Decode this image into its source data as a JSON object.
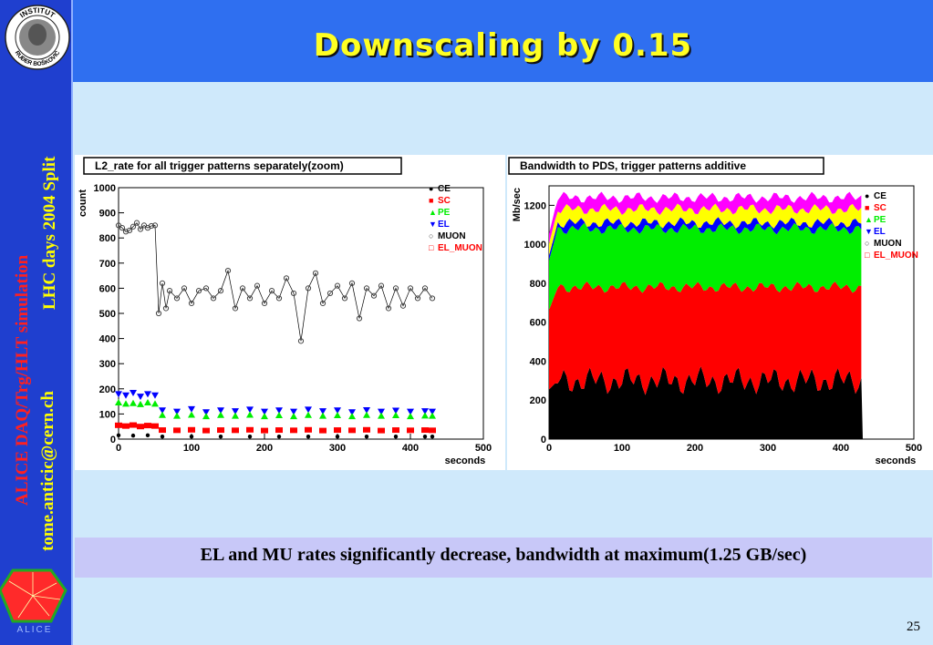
{
  "slide": {
    "title": "Downscaling by 0.15",
    "caption": "EL and MU rates  significantly decrease, bandwidth at maximum(1.25 GB/sec)",
    "page_number": "25"
  },
  "sidebar": {
    "logo_text_top": "INSTITUT",
    "logo_text_bottom": "RUĐER BOŠKOVIĆ",
    "event_text": "LHC days 2004 Split",
    "project_text": "ALICE DAQ/Trg/HLT simulation",
    "author_text": "tome.anticic@cern.ch",
    "alice_logo_text": "ALICE"
  },
  "colors": {
    "CE": "#000000",
    "SC": "#ff0000",
    "PE": "#00ee00",
    "EL": "#0000ff",
    "MUON": "#444444",
    "EL_MUON": "#ff0000",
    "MUON_band": "#ffff00",
    "EL_MUON_band": "#ff00ff",
    "sidebar": "#1f3fcf",
    "titlebar": "#2f6ff0",
    "title_text": "#ffff22"
  },
  "chart_data": [
    {
      "type": "scatter",
      "title": "L2_rate for all trigger patterns separately(zoom)",
      "xlabel": "seconds",
      "ylabel": "count",
      "xlim": [
        0,
        500
      ],
      "ylim": [
        0,
        1000
      ],
      "xticks": [
        0,
        100,
        200,
        300,
        400,
        500
      ],
      "yticks": [
        0,
        100,
        200,
        300,
        400,
        500,
        600,
        700,
        800,
        900,
        1000
      ],
      "legend_position": "top-right",
      "legend": [
        "CE",
        "SC",
        "PE",
        "EL",
        "MUON",
        "EL_MUON"
      ],
      "series": [
        {
          "name": "MUON",
          "marker": "open-circle",
          "color": "#444444",
          "points": [
            [
              0,
              850
            ],
            [
              5,
              840
            ],
            [
              10,
              825
            ],
            [
              15,
              830
            ],
            [
              20,
              845
            ],
            [
              25,
              860
            ],
            [
              30,
              835
            ],
            [
              35,
              850
            ],
            [
              40,
              840
            ],
            [
              45,
              848
            ],
            [
              50,
              850
            ],
            [
              55,
              500
            ],
            [
              60,
              620
            ],
            [
              65,
              520
            ],
            [
              70,
              590
            ],
            [
              80,
              560
            ],
            [
              90,
              600
            ],
            [
              100,
              540
            ],
            [
              110,
              590
            ],
            [
              120,
              600
            ],
            [
              130,
              560
            ],
            [
              140,
              590
            ],
            [
              150,
              670
            ],
            [
              160,
              520
            ],
            [
              170,
              600
            ],
            [
              180,
              560
            ],
            [
              190,
              610
            ],
            [
              200,
              540
            ],
            [
              210,
              590
            ],
            [
              220,
              560
            ],
            [
              230,
              640
            ],
            [
              240,
              580
            ],
            [
              250,
              390
            ],
            [
              260,
              600
            ],
            [
              270,
              660
            ],
            [
              280,
              540
            ],
            [
              290,
              580
            ],
            [
              300,
              610
            ],
            [
              310,
              560
            ],
            [
              320,
              620
            ],
            [
              330,
              480
            ],
            [
              340,
              600
            ],
            [
              350,
              570
            ],
            [
              360,
              610
            ],
            [
              370,
              520
            ],
            [
              380,
              600
            ],
            [
              390,
              530
            ],
            [
              400,
              600
            ],
            [
              410,
              560
            ],
            [
              420,
              600
            ],
            [
              430,
              560
            ]
          ]
        },
        {
          "name": "EL",
          "marker": "triangle-down",
          "color": "#0000ff",
          "points": [
            [
              0,
              180
            ],
            [
              10,
              175
            ],
            [
              20,
              185
            ],
            [
              30,
              170
            ],
            [
              40,
              180
            ],
            [
              50,
              175
            ],
            [
              60,
              115
            ],
            [
              80,
              110
            ],
            [
              100,
              120
            ],
            [
              120,
              108
            ],
            [
              140,
              115
            ],
            [
              160,
              112
            ],
            [
              180,
              118
            ],
            [
              200,
              110
            ],
            [
              220,
              115
            ],
            [
              240,
              110
            ],
            [
              260,
              118
            ],
            [
              280,
              112
            ],
            [
              300,
              115
            ],
            [
              320,
              108
            ],
            [
              340,
              116
            ],
            [
              360,
              110
            ],
            [
              380,
              114
            ],
            [
              400,
              110
            ],
            [
              420,
              112
            ],
            [
              430,
              110
            ]
          ]
        },
        {
          "name": "PE",
          "marker": "triangle-up",
          "color": "#00ee00",
          "points": [
            [
              0,
              145
            ],
            [
              10,
              140
            ],
            [
              20,
              142
            ],
            [
              30,
              138
            ],
            [
              40,
              145
            ],
            [
              50,
              140
            ],
            [
              60,
              95
            ],
            [
              80,
              92
            ],
            [
              100,
              96
            ],
            [
              120,
              90
            ],
            [
              140,
              95
            ],
            [
              160,
              92
            ],
            [
              180,
              96
            ],
            [
              200,
              90
            ],
            [
              220,
              94
            ],
            [
              240,
              90
            ],
            [
              260,
              95
            ],
            [
              280,
              92
            ],
            [
              300,
              94
            ],
            [
              320,
              90
            ],
            [
              340,
              95
            ],
            [
              360,
              92
            ],
            [
              380,
              94
            ],
            [
              400,
              90
            ],
            [
              420,
              93
            ],
            [
              430,
              92
            ]
          ]
        },
        {
          "name": "SC",
          "marker": "square",
          "color": "#ff0000",
          "points": [
            [
              0,
              55
            ],
            [
              10,
              52
            ],
            [
              20,
              56
            ],
            [
              30,
              50
            ],
            [
              40,
              54
            ],
            [
              50,
              52
            ],
            [
              60,
              36
            ],
            [
              80,
              35
            ],
            [
              100,
              37
            ],
            [
              120,
              34
            ],
            [
              140,
              36
            ],
            [
              160,
              35
            ],
            [
              180,
              37
            ],
            [
              200,
              34
            ],
            [
              220,
              36
            ],
            [
              240,
              35
            ],
            [
              260,
              37
            ],
            [
              280,
              34
            ],
            [
              300,
              36
            ],
            [
              320,
              35
            ],
            [
              340,
              37
            ],
            [
              360,
              34
            ],
            [
              380,
              36
            ],
            [
              400,
              35
            ],
            [
              420,
              36
            ],
            [
              430,
              35
            ]
          ]
        },
        {
          "name": "CE",
          "marker": "dot",
          "color": "#000000",
          "points": [
            [
              0,
              15
            ],
            [
              20,
              14
            ],
            [
              40,
              15
            ],
            [
              60,
              10
            ],
            [
              100,
              10
            ],
            [
              140,
              10
            ],
            [
              180,
              10
            ],
            [
              220,
              10
            ],
            [
              260,
              10
            ],
            [
              300,
              10
            ],
            [
              340,
              10
            ],
            [
              380,
              10
            ],
            [
              420,
              10
            ],
            [
              430,
              10
            ]
          ]
        }
      ]
    },
    {
      "type": "area",
      "stacked": true,
      "title": "Bandwidth to PDS, trigger patterns additive",
      "xlabel": "seconds",
      "ylabel": "Mb/sec",
      "xlim": [
        0,
        500
      ],
      "ylim": [
        0,
        1300
      ],
      "xticks": [
        0,
        100,
        200,
        300,
        400,
        500
      ],
      "yticks": [
        0,
        200,
        400,
        600,
        800,
        1000,
        1200
      ],
      "legend_position": "top-right",
      "legend": [
        "CE",
        "SC",
        "PE",
        "EL",
        "MUON",
        "EL_MUON"
      ],
      "x_extent": [
        0,
        430
      ],
      "series": [
        {
          "name": "CE",
          "color": "#000000",
          "level": 300
        },
        {
          "name": "SC",
          "color": "#ff0000",
          "level": 780
        },
        {
          "name": "PE",
          "color": "#00ee00",
          "level": 1080
        },
        {
          "name": "EL",
          "color": "#0000ff",
          "level": 1110
        },
        {
          "name": "MUON",
          "color": "#ffff00",
          "level": 1180
        },
        {
          "name": "EL_MUON",
          "color": "#ff00ff",
          "level": 1240
        }
      ]
    }
  ]
}
